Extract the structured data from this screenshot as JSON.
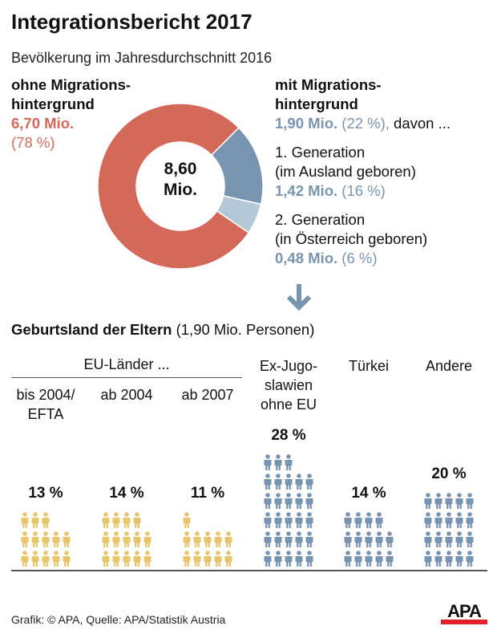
{
  "title": "Integrationsbericht 2017",
  "subtitle": "Bevölkerung im Jahresdurchschnitt 2016",
  "left": {
    "line1": "ohne Migrations-",
    "line2": "hintergrund",
    "value": "6,70 Mio.",
    "pct": "(78 %)"
  },
  "right": {
    "line1": "mit Migrations-",
    "line2": "hintergrund",
    "value": "1,90 Mio.",
    "pct": "(22 %),",
    "suffix": " davon ...",
    "gen1": {
      "line1": "1. Generation",
      "line2": "(im Ausland geboren)",
      "value": "1,42 Mio.",
      "pct": "(16 %)"
    },
    "gen2": {
      "line1": "2. Generation",
      "line2": "(in Österreich geboren)",
      "value": "0,48 Mio.",
      "pct": "(6 %)"
    }
  },
  "center_label": {
    "line1": "8,60",
    "line2": "Mio."
  },
  "section": {
    "title": "Geburtsland der Eltern",
    "note": " (1,90 Mio. Personen)",
    "eu_header": "EU-Länder ..."
  },
  "colors": {
    "red": "#d4695a",
    "blue": "#7894b0",
    "lightblue": "#b4c8d8",
    "yellow": "#e8c46a",
    "arrow": "#7894b0"
  },
  "footer": {
    "credit": "Grafik: © APA, Quelle: APA/Statistik Austria",
    "logo": "APA"
  },
  "chart_data": [
    {
      "type": "pie",
      "variant": "donut",
      "center_label": "8,60 Mio.",
      "slices": [
        {
          "name": "ohne Migrationshintergrund",
          "value": 6.7,
          "percent": 78,
          "color": "#d4695a"
        },
        {
          "name": "1. Generation (im Ausland geboren)",
          "value": 1.42,
          "percent": 16,
          "color": "#7894b0"
        },
        {
          "name": "2. Generation (in Österreich geboren)",
          "value": 0.48,
          "percent": 6,
          "color": "#b4c8d8"
        }
      ]
    },
    {
      "type": "pictogram",
      "title": "Geburtsland der Eltern (1,90 Mio. Personen)",
      "unit_per_icon": "1 %",
      "categories": [
        {
          "lines": [
            "bis 2004/",
            "EFTA"
          ],
          "value": 13,
          "label": "13 %",
          "color": "#e8c46a"
        },
        {
          "lines": [
            "ab 2004"
          ],
          "value": 14,
          "label": "14 %",
          "color": "#e8c46a"
        },
        {
          "lines": [
            "ab 2007"
          ],
          "value": 11,
          "label": "11 %",
          "color": "#e8c46a"
        },
        {
          "lines": [
            "Ex-Jugo-",
            "slawien",
            "ohne EU"
          ],
          "value": 28,
          "label": "28 %",
          "color": "#7894b0"
        },
        {
          "lines": [
            "Türkei"
          ],
          "value": 14,
          "label": "14 %",
          "color": "#7894b0"
        },
        {
          "lines": [
            "Andere"
          ],
          "value": 20,
          "label": "20 %",
          "color": "#7894b0"
        }
      ]
    }
  ]
}
